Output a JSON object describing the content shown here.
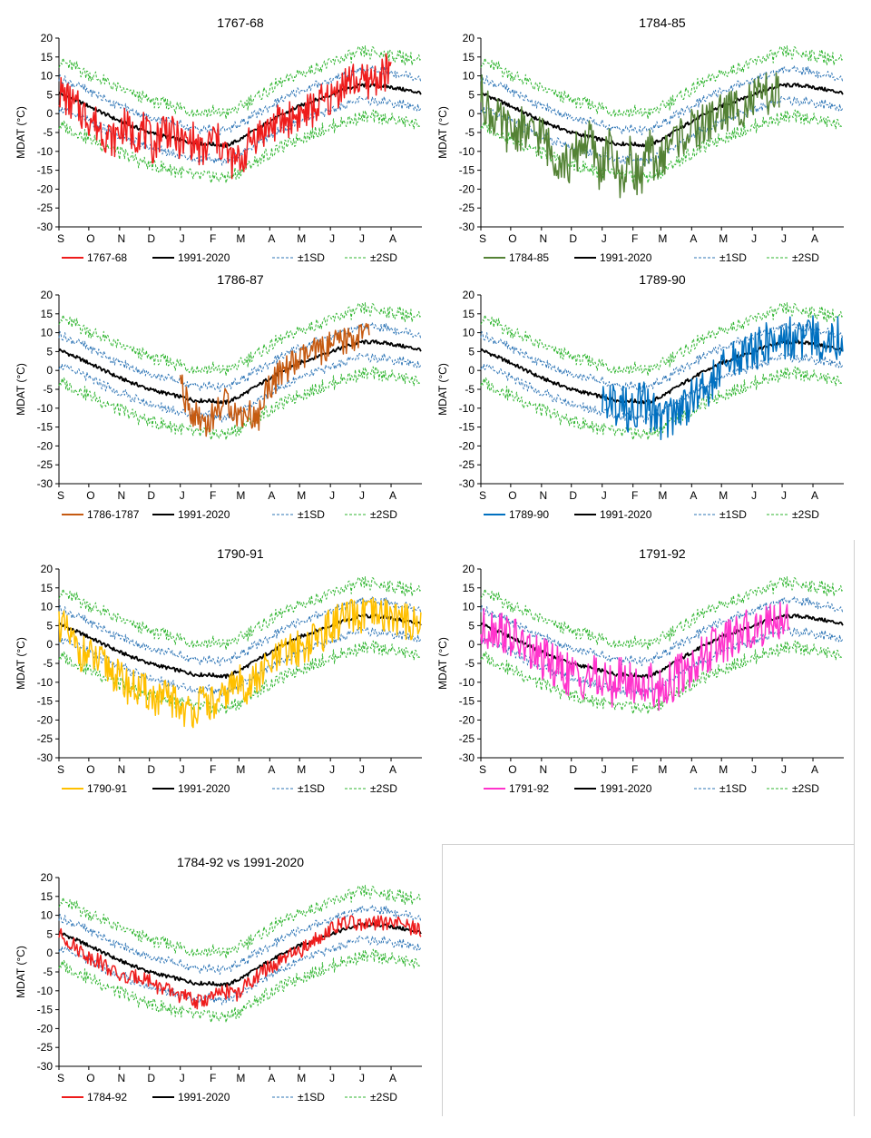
{
  "chart_data": [
    {
      "type": "line",
      "title": "1767-68",
      "ylabel": "MDAT (°C)",
      "ylim": [
        -30,
        20
      ],
      "yticks": [
        20,
        15,
        10,
        5,
        0,
        -5,
        -10,
        -15,
        -20,
        -25,
        -30
      ],
      "months": [
        "S",
        "O",
        "N",
        "D",
        "J",
        "F",
        "M",
        "A",
        "M",
        "J",
        "J",
        "A"
      ],
      "legend": {
        "main": "1767-68",
        "normal": "1991-2020",
        "sd1": "±1SD",
        "sd2": "±2SD"
      },
      "main_color": "#ee1c1c",
      "main_start": 0,
      "main_end": 334,
      "main_anchors": [
        [
          0,
          6
        ],
        [
          15,
          2
        ],
        [
          25,
          0
        ],
        [
          35,
          -2
        ],
        [
          45,
          -5
        ],
        [
          55,
          -7
        ],
        [
          65,
          -3
        ],
        [
          75,
          -6
        ],
        [
          85,
          -4
        ],
        [
          95,
          -9
        ],
        [
          105,
          -3
        ],
        [
          115,
          -6
        ],
        [
          125,
          -8
        ],
        [
          135,
          -7
        ],
        [
          145,
          -11
        ],
        [
          155,
          -6
        ],
        [
          165,
          -9
        ],
        [
          175,
          -13
        ],
        [
          185,
          -12
        ],
        [
          195,
          -6
        ],
        [
          205,
          -5
        ],
        [
          215,
          -3
        ],
        [
          225,
          -2
        ],
        [
          235,
          -1
        ],
        [
          245,
          0
        ],
        [
          255,
          1
        ],
        [
          265,
          3
        ],
        [
          275,
          4
        ],
        [
          285,
          8
        ],
        [
          295,
          9
        ],
        [
          305,
          8
        ],
        [
          315,
          9
        ],
        [
          325,
          10
        ],
        [
          334,
          12
        ]
      ],
      "main_amp": 5
    },
    {
      "type": "line",
      "title": "1784-85",
      "ylabel": "MDAT (°C)",
      "ylim": [
        -30,
        20
      ],
      "yticks": [
        20,
        15,
        10,
        5,
        0,
        -5,
        -10,
        -15,
        -20,
        -25,
        -30
      ],
      "months": [
        "S",
        "O",
        "N",
        "D",
        "J",
        "F",
        "M",
        "A",
        "M",
        "J",
        "J",
        "A"
      ],
      "legend": {
        "main": "1784-85",
        "normal": "1991-2020",
        "sd1": "±1SD",
        "sd2": "±2SD"
      },
      "main_color": "#548235",
      "main_start": 0,
      "main_end": 300,
      "main_anchors": [
        [
          0,
          5
        ],
        [
          10,
          0
        ],
        [
          20,
          -3
        ],
        [
          30,
          -5
        ],
        [
          40,
          -4
        ],
        [
          50,
          -6
        ],
        [
          60,
          -5
        ],
        [
          70,
          -10
        ],
        [
          80,
          -12
        ],
        [
          90,
          -14
        ],
        [
          100,
          -8
        ],
        [
          110,
          -7
        ],
        [
          120,
          -15
        ],
        [
          130,
          -9
        ],
        [
          140,
          -18
        ],
        [
          150,
          -12
        ],
        [
          160,
          -17
        ],
        [
          170,
          -10
        ],
        [
          180,
          -14
        ],
        [
          190,
          -7
        ],
        [
          200,
          -6
        ],
        [
          210,
          -5
        ],
        [
          220,
          -4
        ],
        [
          230,
          -2
        ],
        [
          240,
          0
        ],
        [
          250,
          1
        ],
        [
          260,
          2
        ],
        [
          270,
          3
        ],
        [
          280,
          4
        ],
        [
          290,
          5
        ],
        [
          300,
          5
        ]
      ],
      "main_amp": 6
    },
    {
      "type": "line",
      "title": "1786-87",
      "ylabel": "MDAT (°C)",
      "ylim": [
        -30,
        20
      ],
      "yticks": [
        20,
        15,
        10,
        5,
        0,
        -5,
        -10,
        -15,
        -20,
        -25,
        -30
      ],
      "months": [
        "S",
        "O",
        "N",
        "D",
        "J",
        "F",
        "M",
        "A",
        "M",
        "J",
        "J",
        "A"
      ],
      "legend": {
        "main": "1786-1787",
        "normal": "1991-2020",
        "sd1": "±1SD",
        "sd2": "±2SD"
      },
      "main_color": "#c55a11",
      "main_start": 122,
      "main_end": 312,
      "main_anchors": [
        [
          122,
          -3
        ],
        [
          130,
          -10
        ],
        [
          140,
          -12
        ],
        [
          150,
          -14
        ],
        [
          160,
          -10
        ],
        [
          170,
          -8
        ],
        [
          180,
          -12
        ],
        [
          190,
          -11
        ],
        [
          200,
          -13
        ],
        [
          210,
          -4
        ],
        [
          220,
          -2
        ],
        [
          230,
          1
        ],
        [
          240,
          2
        ],
        [
          250,
          4
        ],
        [
          260,
          5
        ],
        [
          270,
          6
        ],
        [
          280,
          7
        ],
        [
          290,
          8
        ],
        [
          300,
          9
        ],
        [
          312,
          10
        ]
      ],
      "main_amp": 4
    },
    {
      "type": "line",
      "title": "1789-90",
      "ylabel": "MDAT (°C)",
      "ylim": [
        -30,
        20
      ],
      "yticks": [
        20,
        15,
        10,
        5,
        0,
        -5,
        -10,
        -15,
        -20,
        -25,
        -30
      ],
      "months": [
        "S",
        "O",
        "N",
        "D",
        "J",
        "F",
        "M",
        "A",
        "M",
        "J",
        "J",
        "A"
      ],
      "legend": {
        "main": "1789-90",
        "normal": "1991-2020",
        "sd1": "±1SD",
        "sd2": "±2SD"
      },
      "main_color": "#0070c0",
      "main_start": 122,
      "main_end": 364,
      "main_anchors": [
        [
          122,
          -5
        ],
        [
          130,
          -10
        ],
        [
          140,
          -8
        ],
        [
          150,
          -12
        ],
        [
          160,
          -8
        ],
        [
          170,
          -10
        ],
        [
          180,
          -13
        ],
        [
          190,
          -12
        ],
        [
          200,
          -10
        ],
        [
          210,
          -8
        ],
        [
          220,
          -6
        ],
        [
          230,
          -4
        ],
        [
          240,
          -1
        ],
        [
          250,
          2
        ],
        [
          260,
          4
        ],
        [
          270,
          5
        ],
        [
          280,
          6
        ],
        [
          290,
          7
        ],
        [
          300,
          8
        ],
        [
          310,
          9
        ],
        [
          320,
          8
        ],
        [
          330,
          9
        ],
        [
          340,
          8
        ],
        [
          350,
          9
        ],
        [
          364,
          8
        ]
      ],
      "main_amp": 6
    },
    {
      "type": "line",
      "title": "1790-91",
      "ylabel": "MDAT (°C)",
      "ylim": [
        -30,
        20
      ],
      "yticks": [
        20,
        15,
        10,
        5,
        0,
        -5,
        -10,
        -15,
        -20,
        -25,
        -30
      ],
      "months": [
        "S",
        "O",
        "N",
        "D",
        "J",
        "F",
        "M",
        "A",
        "M",
        "J",
        "J",
        "A"
      ],
      "legend": {
        "main": "1790-91",
        "normal": "1991-2020",
        "sd1": "±1SD",
        "sd2": "±2SD"
      },
      "main_color": "#ffc000",
      "main_start": 0,
      "main_end": 364,
      "main_anchors": [
        [
          0,
          6
        ],
        [
          10,
          2
        ],
        [
          20,
          -2
        ],
        [
          30,
          -3
        ],
        [
          40,
          -5
        ],
        [
          50,
          -6
        ],
        [
          60,
          -9
        ],
        [
          70,
          -11
        ],
        [
          80,
          -12
        ],
        [
          90,
          -13
        ],
        [
          100,
          -15
        ],
        [
          110,
          -14
        ],
        [
          120,
          -16
        ],
        [
          130,
          -18
        ],
        [
          140,
          -16
        ],
        [
          150,
          -15
        ],
        [
          160,
          -17
        ],
        [
          170,
          -12
        ],
        [
          180,
          -10
        ],
        [
          190,
          -11
        ],
        [
          200,
          -9
        ],
        [
          210,
          -6
        ],
        [
          220,
          -4
        ],
        [
          230,
          -2
        ],
        [
          240,
          -1
        ],
        [
          250,
          0
        ],
        [
          260,
          2
        ],
        [
          270,
          4
        ],
        [
          280,
          6
        ],
        [
          290,
          7
        ],
        [
          300,
          7
        ],
        [
          310,
          8
        ],
        [
          320,
          7
        ],
        [
          330,
          8
        ],
        [
          340,
          7
        ],
        [
          350,
          6
        ],
        [
          364,
          6
        ]
      ],
      "main_amp": 5
    },
    {
      "type": "line",
      "title": "1791-92",
      "ylabel": "MDAT (°C)",
      "ylim": [
        -30,
        20
      ],
      "yticks": [
        20,
        15,
        10,
        5,
        0,
        -5,
        -10,
        -15,
        -20,
        -25,
        -30
      ],
      "months": [
        "S",
        "O",
        "N",
        "D",
        "J",
        "F",
        "M",
        "A",
        "M",
        "J",
        "J",
        "A"
      ],
      "legend": {
        "main": "1791-92",
        "normal": "1991-2020",
        "sd1": "±1SD",
        "sd2": "±2SD"
      },
      "main_color": "#ff33cc",
      "main_start": 0,
      "main_end": 310,
      "main_anchors": [
        [
          0,
          3
        ],
        [
          10,
          5
        ],
        [
          20,
          4
        ],
        [
          30,
          2
        ],
        [
          40,
          0
        ],
        [
          50,
          -2
        ],
        [
          60,
          -4
        ],
        [
          70,
          -5
        ],
        [
          80,
          -7
        ],
        [
          90,
          -8
        ],
        [
          100,
          -9
        ],
        [
          110,
          -8
        ],
        [
          120,
          -10
        ],
        [
          130,
          -11
        ],
        [
          140,
          -9
        ],
        [
          150,
          -10
        ],
        [
          160,
          -11
        ],
        [
          170,
          -10
        ],
        [
          180,
          -12
        ],
        [
          190,
          -10
        ],
        [
          200,
          -8
        ],
        [
          210,
          -6
        ],
        [
          220,
          -4
        ],
        [
          230,
          -2
        ],
        [
          240,
          0
        ],
        [
          250,
          1
        ],
        [
          260,
          2
        ],
        [
          270,
          4
        ],
        [
          280,
          5
        ],
        [
          290,
          6
        ],
        [
          300,
          7
        ],
        [
          310,
          8
        ]
      ],
      "main_amp": 6
    },
    {
      "type": "line",
      "title": "1784-92 vs 1991-2020",
      "ylabel": "MDAT (°C)",
      "ylim": [
        -30,
        20
      ],
      "yticks": [
        20,
        15,
        10,
        5,
        0,
        -5,
        -10,
        -15,
        -20,
        -25,
        -30
      ],
      "months": [
        "S",
        "O",
        "N",
        "D",
        "J",
        "F",
        "M",
        "A",
        "M",
        "J",
        "J",
        "A"
      ],
      "legend": {
        "main": "1784-92",
        "normal": "1991-2020",
        "sd1": "±1SD",
        "sd2": "±2SD"
      },
      "main_color": "#ee1c1c",
      "main_start": 0,
      "main_end": 364,
      "main_anchors": [
        [
          0,
          5
        ],
        [
          10,
          3
        ],
        [
          20,
          1
        ],
        [
          30,
          -1
        ],
        [
          40,
          -2
        ],
        [
          50,
          -4
        ],
        [
          60,
          -6
        ],
        [
          70,
          -7
        ],
        [
          80,
          -6
        ],
        [
          90,
          -7
        ],
        [
          100,
          -9
        ],
        [
          110,
          -10
        ],
        [
          120,
          -11
        ],
        [
          130,
          -12
        ],
        [
          140,
          -13
        ],
        [
          150,
          -12
        ],
        [
          160,
          -11
        ],
        [
          170,
          -10
        ],
        [
          180,
          -11
        ],
        [
          190,
          -8
        ],
        [
          200,
          -6
        ],
        [
          210,
          -4
        ],
        [
          220,
          -3
        ],
        [
          230,
          -1
        ],
        [
          240,
          0
        ],
        [
          250,
          2
        ],
        [
          260,
          4
        ],
        [
          270,
          6
        ],
        [
          280,
          7
        ],
        [
          290,
          8
        ],
        [
          300,
          8
        ],
        [
          310,
          7
        ],
        [
          320,
          8
        ],
        [
          330,
          8
        ],
        [
          340,
          8
        ],
        [
          350,
          7
        ],
        [
          364,
          6
        ]
      ],
      "main_amp": 2
    },
    {
      "normal_anchors": [
        [
          0,
          5.5
        ],
        [
          30,
          2
        ],
        [
          61,
          -2
        ],
        [
          91,
          -5
        ],
        [
          122,
          -7
        ],
        [
          138,
          -8
        ],
        [
          150,
          -8
        ],
        [
          168,
          -8.5
        ],
        [
          181,
          -7
        ],
        [
          200,
          -4
        ],
        [
          212,
          -2
        ],
        [
          242,
          2
        ],
        [
          273,
          5
        ],
        [
          290,
          6.5
        ],
        [
          303,
          7.5
        ],
        [
          320,
          7.5
        ],
        [
          334,
          7
        ],
        [
          364,
          5.5
        ]
      ],
      "sd1_offset": 4,
      "sd2_offset": 8.5,
      "colors": {
        "normal": "#000000",
        "sd1": "#2e75b6",
        "sd2": "#2fb52f"
      }
    }
  ]
}
